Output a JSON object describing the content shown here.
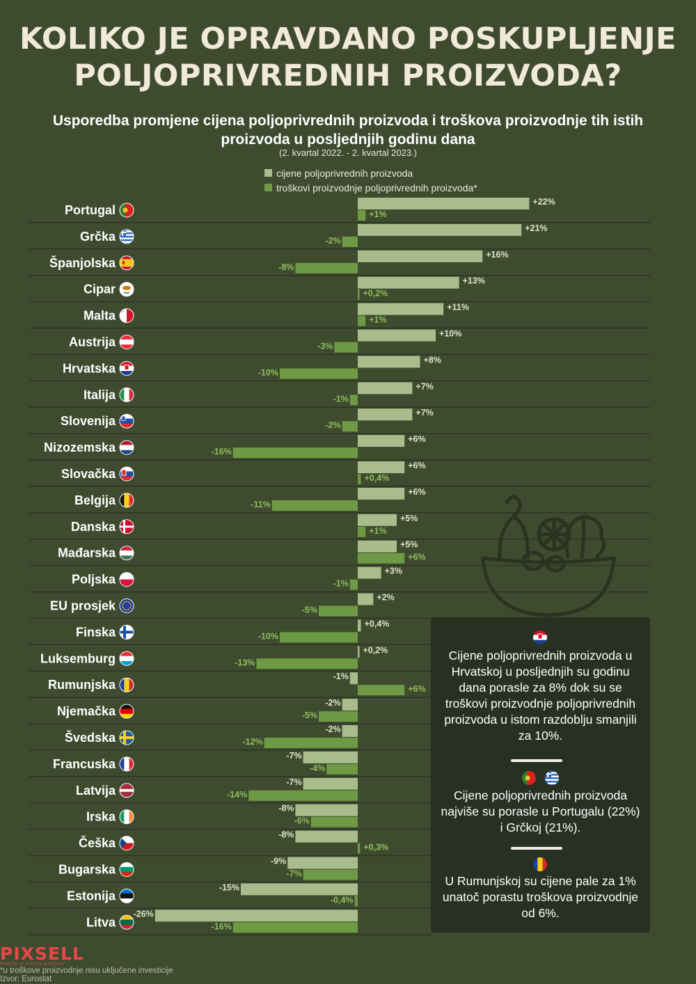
{
  "title_line1": "KOLIKO JE OPRAVDANO POSKUPLJENJE",
  "title_line2": "POLJOPRIVREDNIH PROIZVODA?",
  "subtitle_line1": "Usporedba promjene cijena poljoprivrednih proizvoda i troškova proizvodnje tih istih",
  "subtitle_line2": "proizvoda u posljednjih godinu dana",
  "period": "(2. kvartal 2022. - 2. kvartal 2023.)",
  "colors": {
    "background": "#3f4b2f",
    "price": "#a9bd8c",
    "cost": "#6e9a45",
    "price_label": "#dce5c9",
    "cost_label": "#8fbf5e",
    "box": "#283022"
  },
  "chart_data": {
    "type": "bar",
    "orientation": "horizontal",
    "unit": "%",
    "categories": [
      "Portugal",
      "Grčka",
      "Španjolska",
      "Cipar",
      "Malta",
      "Austrija",
      "Hrvatska",
      "Italija",
      "Slovenija",
      "Nizozemska",
      "Slovačka",
      "Belgija",
      "Danska",
      "Mađarska",
      "Poljska",
      "EU prosjek",
      "Finska",
      "Luksemburg",
      "Rumunjska",
      "Njemačka",
      "Švedska",
      "Francuska",
      "Latvija",
      "Irska",
      "Češka",
      "Bugarska",
      "Estonija",
      "Litva"
    ],
    "flags": [
      "portugal",
      "greece",
      "spain",
      "cyprus",
      "malta",
      "austria",
      "croatia",
      "italy",
      "slovenia",
      "netherlands",
      "slovakia",
      "belgium",
      "denmark",
      "hungary",
      "poland",
      "eu",
      "finland",
      "luxembourg",
      "romania",
      "germany",
      "sweden",
      "france",
      "latvia",
      "ireland",
      "czechia",
      "bulgaria",
      "estonia",
      "lithuania"
    ],
    "series": [
      {
        "name": "cijene poljoprivrednih proizvoda",
        "color": "#a9bd8c",
        "values": [
          22,
          21,
          16,
          13,
          11,
          10,
          8,
          7,
          7,
          6,
          6,
          6,
          5,
          5,
          3,
          2,
          0.4,
          0.2,
          -1,
          -2,
          -2,
          -7,
          -7,
          -8,
          -8,
          -9,
          -15,
          -26
        ],
        "labels": [
          "+22%",
          "+21%",
          "+16%",
          "+13%",
          "+11%",
          "+10%",
          "+8%",
          "+7%",
          "+7%",
          "+6%",
          "+6%",
          "+6%",
          "+5%",
          "+5%",
          "+3%",
          "+2%",
          "+0,4%",
          "+0,2%",
          "-1%",
          "-2%",
          "-2%",
          "-7%",
          "-7%",
          "-8%",
          "-8%",
          "-9%",
          "-15%",
          "-26%"
        ]
      },
      {
        "name": "troškovi proizvodnje poljoprivrednih proizvoda*",
        "color": "#6e9a45",
        "values": [
          1,
          -2,
          -8,
          0.2,
          1,
          -3,
          -10,
          -1,
          -2,
          -16,
          0.4,
          -11,
          1,
          6,
          -1,
          -5,
          -10,
          -13,
          6,
          -5,
          -12,
          -4,
          -14,
          -6,
          0.3,
          -7,
          -0.4,
          -16
        ],
        "labels": [
          "+1%",
          "-2%",
          "-8%",
          "+0,2%",
          "+1%",
          "-3%",
          "-10%",
          "-1%",
          "-2%",
          "-16%",
          "+0,4%",
          "-11%",
          "+1%",
          "+6%",
          "-1%",
          "-5%",
          "-10%",
          "-13%",
          "+6%",
          "-5%",
          "-12%",
          "-4%",
          "-14%",
          "-6%",
          "+0,3%",
          "-7%",
          "-0,4%",
          "-16%"
        ]
      }
    ]
  },
  "info": {
    "p1": "Cijene poljoprivrednih proizvoda u Hrvatskoj u posljednjih su godinu dana porasle za 8% dok su se troškovi proizvodnje poljoprivrednih proizvoda u istom razdoblju smanjili za 10%.",
    "p2": "Cijene poljoprivrednih proizvoda najviše su porasle u Portugalu (22%) i Grčkoj (21%).",
    "p3": "U Rumunjskoj su cijene pale za 1% unatoč porastu troškova proizvodnje od 6%."
  },
  "logo": "PIXSELL",
  "logo_sub": "PHOTO & VIDEO AGENCY",
  "footnote": "*u troškove proizvodnje nisu uključene investicije",
  "source": "Izvor: Eurostat"
}
